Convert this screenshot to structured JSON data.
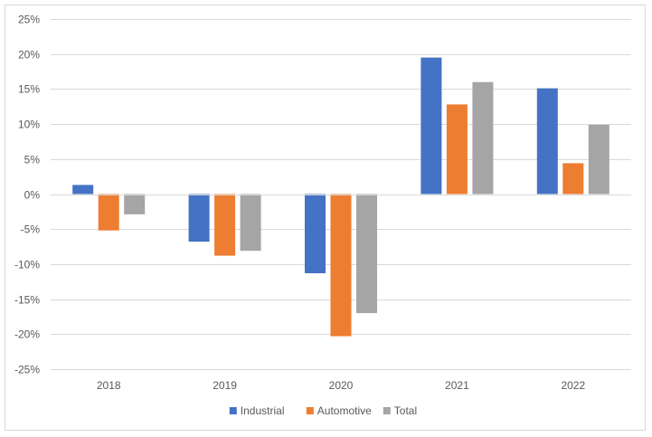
{
  "chart_data": {
    "type": "bar",
    "categories": [
      "2018",
      "2019",
      "2020",
      "2021",
      "2022"
    ],
    "series": [
      {
        "name": "Industrial",
        "color": "#4472c4",
        "values": [
          1.3,
          -6.8,
          -11.3,
          19.5,
          15.1
        ]
      },
      {
        "name": "Automotive",
        "color": "#ed7d31",
        "values": [
          -5.2,
          -8.8,
          -20.3,
          12.8,
          4.4
        ]
      },
      {
        "name": "Total",
        "color": "#a5a5a5",
        "values": [
          -2.9,
          -8.1,
          -17.0,
          16.0,
          9.9
        ]
      }
    ],
    "ylim": [
      -25,
      25
    ],
    "yticks": [
      25,
      20,
      15,
      10,
      5,
      0,
      -5,
      -10,
      -15,
      -20,
      -25
    ],
    "ytick_labels": [
      "25%",
      "20%",
      "15%",
      "10%",
      "5%",
      "0%",
      "-5%",
      "-10%",
      "-15%",
      "-20%",
      "-25%"
    ],
    "grid": true,
    "legend_position": "bottom",
    "title": "",
    "xlabel": "",
    "ylabel": ""
  }
}
